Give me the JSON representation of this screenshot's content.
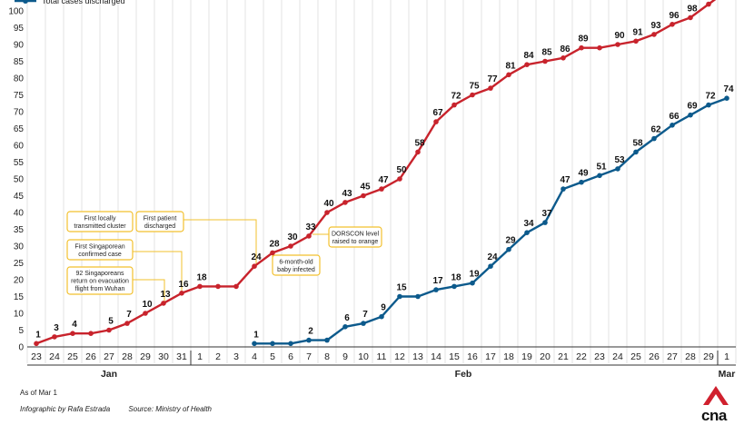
{
  "chart_data": {
    "type": "line",
    "x": [
      "23",
      "24",
      "25",
      "26",
      "27",
      "28",
      "29",
      "30",
      "31",
      "1",
      "2",
      "3",
      "4",
      "5",
      "6",
      "7",
      "8",
      "9",
      "10",
      "11",
      "12",
      "13",
      "14",
      "15",
      "16",
      "17",
      "18",
      "19",
      "20",
      "21",
      "22",
      "23",
      "24",
      "25",
      "26",
      "27",
      "28",
      "29",
      "1"
    ],
    "months": [
      {
        "label": "Jan",
        "center_index": 4
      },
      {
        "label": "Feb",
        "center_index": 23.5
      },
      {
        "label": "Mar",
        "center_index": 38
      }
    ],
    "series": [
      {
        "name": "",
        "color": "#c8232c",
        "values": [
          1,
          3,
          4,
          4,
          5,
          7,
          10,
          13,
          16,
          18,
          18,
          18,
          24,
          28,
          30,
          33,
          40,
          43,
          45,
          47,
          50,
          58,
          67,
          72,
          75,
          77,
          81,
          84,
          85,
          86,
          89,
          89,
          90,
          91,
          93,
          96,
          98,
          102,
          106
        ],
        "labels": [
          1,
          3,
          4,
          null,
          5,
          7,
          10,
          13,
          16,
          18,
          null,
          null,
          24,
          28,
          30,
          33,
          40,
          43,
          45,
          47,
          50,
          58,
          67,
          72,
          75,
          77,
          81,
          84,
          85,
          86,
          89,
          null,
          90,
          91,
          93,
          96,
          98,
          null,
          null
        ]
      },
      {
        "name": "Total cases discharged",
        "color": "#0c5a8c",
        "values": [
          null,
          null,
          null,
          null,
          null,
          null,
          null,
          null,
          null,
          null,
          null,
          null,
          1,
          1,
          1,
          2,
          2,
          6,
          7,
          9,
          15,
          15,
          17,
          18,
          19,
          24,
          29,
          34,
          37,
          47,
          49,
          51,
          53,
          58,
          62,
          66,
          69,
          72,
          74
        ],
        "labels": [
          null,
          null,
          null,
          null,
          null,
          null,
          null,
          null,
          null,
          null,
          null,
          null,
          1,
          null,
          null,
          2,
          null,
          6,
          7,
          9,
          15,
          null,
          17,
          18,
          19,
          24,
          29,
          34,
          37,
          47,
          49,
          51,
          53,
          58,
          62,
          66,
          69,
          72,
          74
        ]
      }
    ],
    "yticks": [
      0,
      5,
      10,
      15,
      20,
      25,
      30,
      35,
      40,
      45,
      50,
      55,
      60,
      65,
      70,
      75,
      80,
      85,
      90,
      95,
      100
    ],
    "ylim": [
      0,
      103
    ],
    "grid": "vertical",
    "legend_placement": "top-left",
    "annotations": [
      {
        "text": "First locally transmitted cluster",
        "lines": [
          "First locally",
          "transmitted cluster"
        ]
      },
      {
        "text": "First patient discharged",
        "lines": [
          "First patient",
          "discharged"
        ]
      },
      {
        "text": "DORSCON level raised to orange",
        "lines": [
          "DORSCON level",
          "raised to orange"
        ]
      },
      {
        "text": "6-month-old baby infected",
        "lines": [
          "6-month-old",
          "baby infected"
        ]
      },
      {
        "text": "First Singaporean confirmed case",
        "lines": [
          "First Singaporean",
          "confirmed case"
        ]
      },
      {
        "text": "92 Singaporeans return on evacuation flight from Wuhan",
        "lines": [
          "92 Singaporeans",
          "return on evacuation",
          "flight from Wuhan"
        ]
      }
    ]
  },
  "footer": {
    "as_of": "As of Mar 1",
    "infographic_by": "Infographic by Rafa Estrada",
    "source": "Source: Ministry of Health"
  },
  "logo": {
    "text": "cna",
    "color": "#d0202e"
  }
}
